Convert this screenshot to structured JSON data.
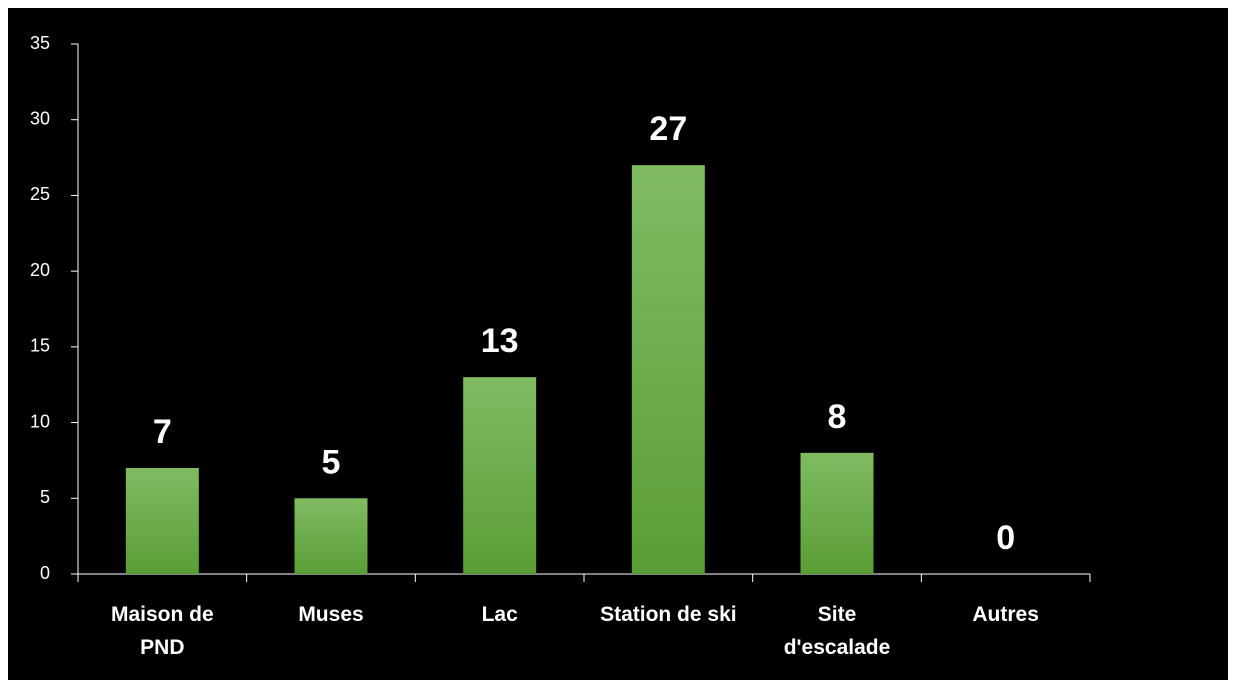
{
  "chart_data": {
    "type": "bar",
    "categories": [
      "Maison de PND",
      "Muses",
      "Lac",
      "Station de ski",
      "Site d'escalade",
      "Autres"
    ],
    "values": [
      7,
      5,
      13,
      27,
      8,
      0
    ],
    "color": "#6cae46",
    "ylim": [
      0,
      35
    ],
    "yticks": [
      0,
      5,
      10,
      15,
      20,
      25,
      30,
      35
    ]
  }
}
